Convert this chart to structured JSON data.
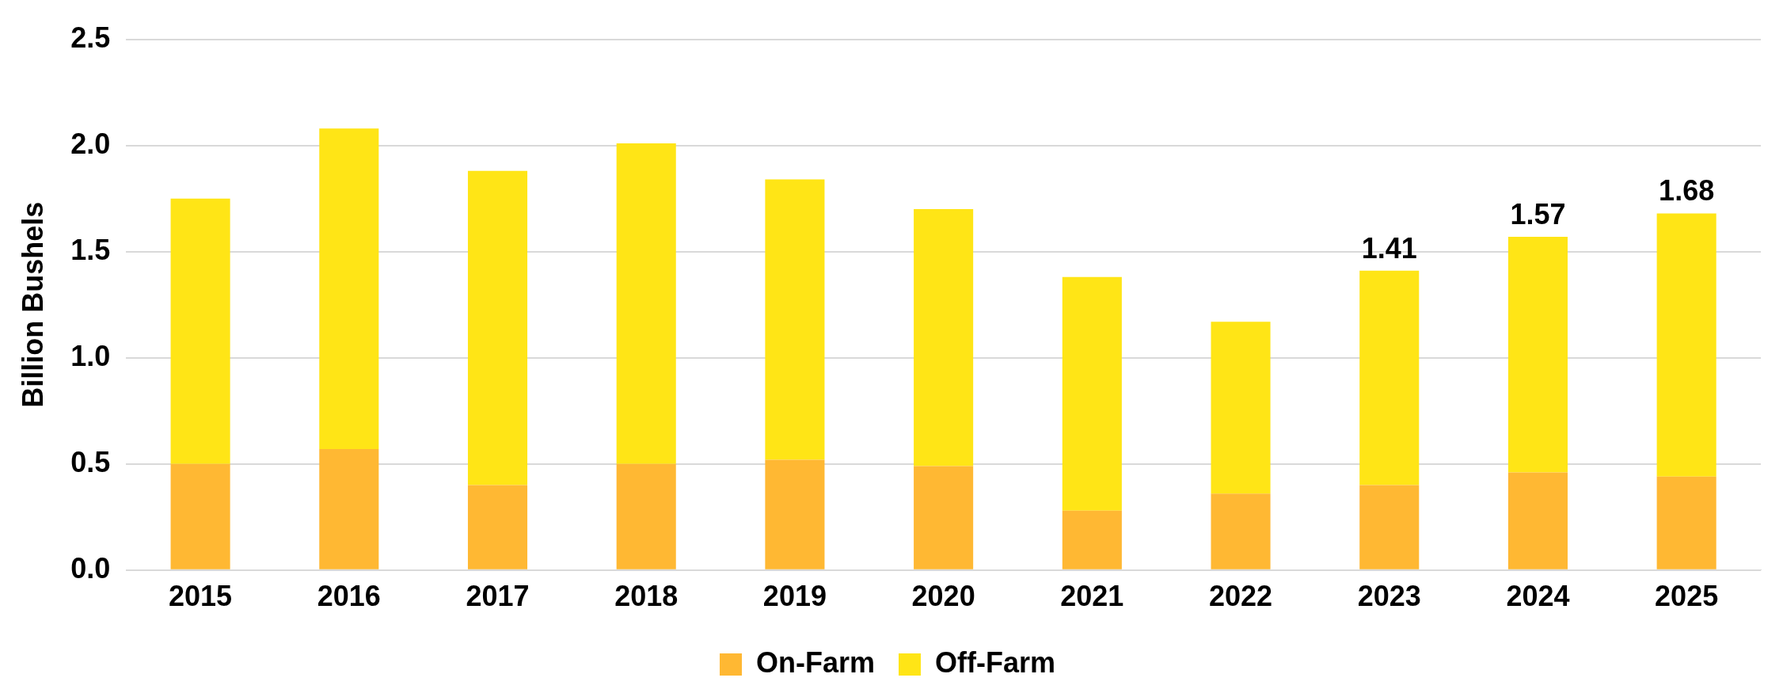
{
  "chart_data": {
    "type": "bar",
    "stacked": true,
    "ylabel": "Billion Bushels",
    "categories": [
      "2015",
      "2016",
      "2017",
      "2018",
      "2019",
      "2020",
      "2021",
      "2022",
      "2023",
      "2024",
      "2025"
    ],
    "series": [
      {
        "name": "On-Farm",
        "color": "#ffb833",
        "values": [
          0.5,
          0.57,
          0.4,
          0.5,
          0.52,
          0.49,
          0.28,
          0.36,
          0.4,
          0.46,
          0.44
        ]
      },
      {
        "name": "Off-Farm",
        "color": "#ffe516",
        "values": [
          1.25,
          1.51,
          1.48,
          1.51,
          1.32,
          1.21,
          1.1,
          0.81,
          1.01,
          1.11,
          1.24
        ]
      }
    ],
    "totals": [
      null,
      null,
      null,
      null,
      null,
      null,
      null,
      null,
      "1.41",
      "1.57",
      "1.68"
    ],
    "ylim": [
      0,
      2.5
    ],
    "yticks": [
      {
        "value": 0,
        "label": "0.0"
      },
      {
        "value": 0.5,
        "label": "0.5"
      },
      {
        "value": 1,
        "label": "1.0"
      },
      {
        "value": 1.5,
        "label": "1.5"
      },
      {
        "value": 2,
        "label": "2.0"
      },
      {
        "value": 2.5,
        "label": "2.5"
      }
    ],
    "grid": "y",
    "legend": "bottom"
  }
}
